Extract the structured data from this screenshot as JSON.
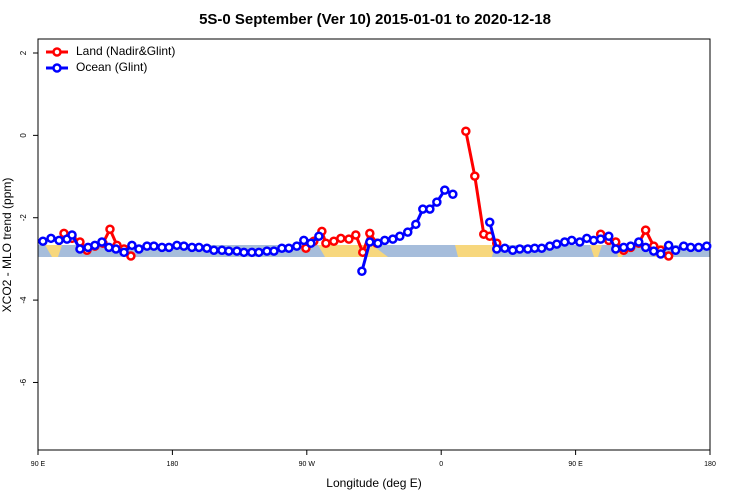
{
  "chart_data": {
    "type": "line",
    "title": "5S-0 September (Ver 10)   2015-01-01 to 2020-12-18",
    "x_label": "Longitude (deg E)",
    "y_label": "XCO2 - MLO trend (ppm)",
    "xlim": [
      90,
      540
    ],
    "xticks": [
      {
        "value": 90,
        "label": "90 E"
      },
      {
        "value": 180,
        "label": "180"
      },
      {
        "value": 270,
        "label": "90 W"
      },
      {
        "value": 360,
        "label": "0"
      },
      {
        "value": 450,
        "label": "90 E"
      },
      {
        "value": 540,
        "label": "180"
      }
    ],
    "ylim": [
      -7.64,
      2.34
    ],
    "yticks": [
      2,
      0,
      -2,
      -4,
      -6
    ],
    "legend": "top-left",
    "series": [
      {
        "name": "Land (Nadir&Glint)",
        "color": "#ff0000",
        "x": [
          107.4,
          112.8,
          118.1,
          122.8,
          128.1,
          133.5,
          138.2,
          142.9,
          147.6,
          152.2,
          null,
          269.4,
          274.7,
          280.1,
          282.8,
          288.1,
          292.8,
          298.2,
          302.8,
          307.5,
          312.2,
          316.9,
          null,
          376.5,
          382.5,
          388.5,
          392.5,
          397.2,
          null,
          466.8,
          472.2,
          476.9,
          482.2,
          486.9,
          492.3,
          496.9,
          502.3,
          507.0,
          512.3
        ],
        "values": [
          -2.38,
          -2.5,
          -2.59,
          -2.79,
          -2.69,
          -2.62,
          -2.28,
          -2.67,
          -2.76,
          -2.93,
          null,
          -2.74,
          -2.57,
          -2.33,
          -2.62,
          -2.57,
          -2.5,
          -2.52,
          -2.42,
          -2.84,
          -2.38,
          -2.62,
          null,
          0.1,
          -0.99,
          -2.4,
          -2.45,
          -2.62,
          null,
          -2.4,
          -2.55,
          -2.59,
          -2.79,
          -2.72,
          -2.62,
          -2.3,
          -2.69,
          -2.79,
          -2.93
        ]
      },
      {
        "name": "Ocean (Glint)",
        "color": "#0000ff",
        "x": [
          93.3,
          98.7,
          104.1,
          109.4,
          112.8,
          118.1,
          123.5,
          128.1,
          132.8,
          137.5,
          142.2,
          147.6,
          152.9,
          157.6,
          163.0,
          167.6,
          173.0,
          177.7,
          183.0,
          187.7,
          193.1,
          197.8,
          203.1,
          207.8,
          213.2,
          217.8,
          223.2,
          227.9,
          233.2,
          237.9,
          243.3,
          248.0,
          253.3,
          258.0,
          263.3,
          268.0,
          272.7,
          278.1,
          null,
          306.9,
          312.2,
          317.6,
          322.2,
          327.6,
          332.3,
          337.6,
          343.0,
          347.7,
          352.4,
          357.1,
          362.4,
          367.8,
          null,
          392.5,
          397.2,
          402.6,
          407.9,
          412.6,
          418.0,
          422.6,
          427.3,
          432.7,
          437.4,
          442.7,
          447.4,
          452.8,
          457.5,
          462.1,
          466.8,
          472.2,
          476.9,
          482.2,
          486.9,
          492.3,
          496.9,
          502.3,
          507.0,
          512.3,
          517.0,
          522.4,
          527.1,
          532.4,
          537.8
        ],
        "values": [
          -2.57,
          -2.5,
          -2.55,
          -2.52,
          -2.42,
          -2.76,
          -2.72,
          -2.67,
          -2.59,
          -2.72,
          -2.76,
          -2.84,
          -2.67,
          -2.76,
          -2.69,
          -2.69,
          -2.72,
          -2.72,
          -2.67,
          -2.69,
          -2.72,
          -2.72,
          -2.74,
          -2.79,
          -2.79,
          -2.81,
          -2.81,
          -2.84,
          -2.84,
          -2.84,
          -2.81,
          -2.81,
          -2.74,
          -2.74,
          -2.69,
          -2.55,
          -2.62,
          -2.45,
          null,
          -3.3,
          -2.59,
          -2.62,
          -2.55,
          -2.52,
          -2.45,
          -2.35,
          -2.16,
          -1.79,
          -1.79,
          -1.62,
          -1.33,
          -1.43,
          null,
          -2.11,
          -2.76,
          -2.74,
          -2.79,
          -2.76,
          -2.76,
          -2.74,
          -2.74,
          -2.69,
          -2.64,
          -2.59,
          -2.55,
          -2.59,
          -2.5,
          -2.55,
          -2.52,
          -2.45,
          -2.76,
          -2.72,
          -2.69,
          -2.59,
          -2.72,
          -2.81,
          -2.88,
          -2.67,
          -2.79,
          -2.69,
          -2.72,
          -2.72,
          -2.69
        ]
      }
    ]
  }
}
